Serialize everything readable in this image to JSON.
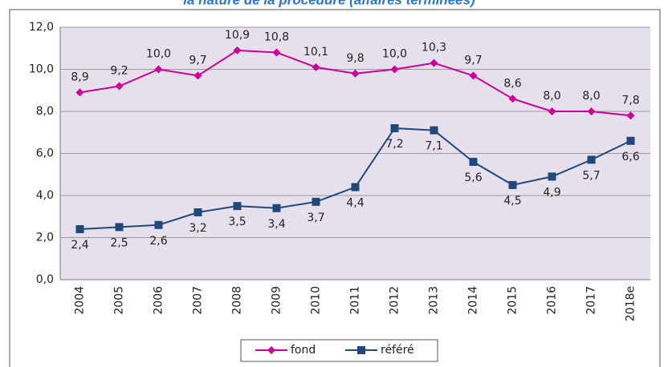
{
  "chart_data": {
    "type": "line",
    "title": "la nature de la procédure (affaires terminées)",
    "categories": [
      "2004",
      "2005",
      "2006",
      "2007",
      "2008",
      "2009",
      "2010",
      "2011",
      "2012",
      "2013",
      "2014",
      "2015",
      "2016",
      "2017",
      "2018e"
    ],
    "series": [
      {
        "name": "fond",
        "color": "#cc0099",
        "marker": "diamond",
        "values": [
          8.9,
          9.2,
          10.0,
          9.7,
          10.9,
          10.8,
          10.1,
          9.8,
          10.0,
          10.3,
          9.7,
          8.6,
          8.0,
          8.0,
          7.8
        ],
        "value_labels": [
          "8,9",
          "9,2",
          "10,0",
          "9,7",
          "10,9",
          "10,8",
          "10,1",
          "9,8",
          "10,0",
          "10,3",
          "9,7",
          "8,6",
          "8,0",
          "8,0",
          "7,8"
        ]
      },
      {
        "name": "référé",
        "color": "#1f497d",
        "marker": "square",
        "values": [
          2.4,
          2.5,
          2.6,
          3.2,
          3.5,
          3.4,
          3.7,
          4.4,
          7.2,
          7.1,
          5.6,
          4.5,
          4.9,
          5.7,
          6.6
        ],
        "value_labels": [
          "2,4",
          "2,5",
          "2,6",
          "3,2",
          "3,5",
          "3,4",
          "3,7",
          "4,4",
          "7,2",
          "7,1",
          "5,6",
          "4,5",
          "4,9",
          "5,7",
          "6,6"
        ]
      }
    ],
    "ylim": [
      0,
      12
    ],
    "yticks": [
      {
        "value": 0,
        "label": "0,0"
      },
      {
        "value": 2,
        "label": "2,0"
      },
      {
        "value": 4,
        "label": "4,0"
      },
      {
        "value": 6,
        "label": "6,0"
      },
      {
        "value": 8,
        "label": "8,0"
      },
      {
        "value": 10,
        "label": "10,0"
      },
      {
        "value": 12,
        "label": "12,0"
      }
    ],
    "grid": true,
    "legend": "bottom"
  }
}
